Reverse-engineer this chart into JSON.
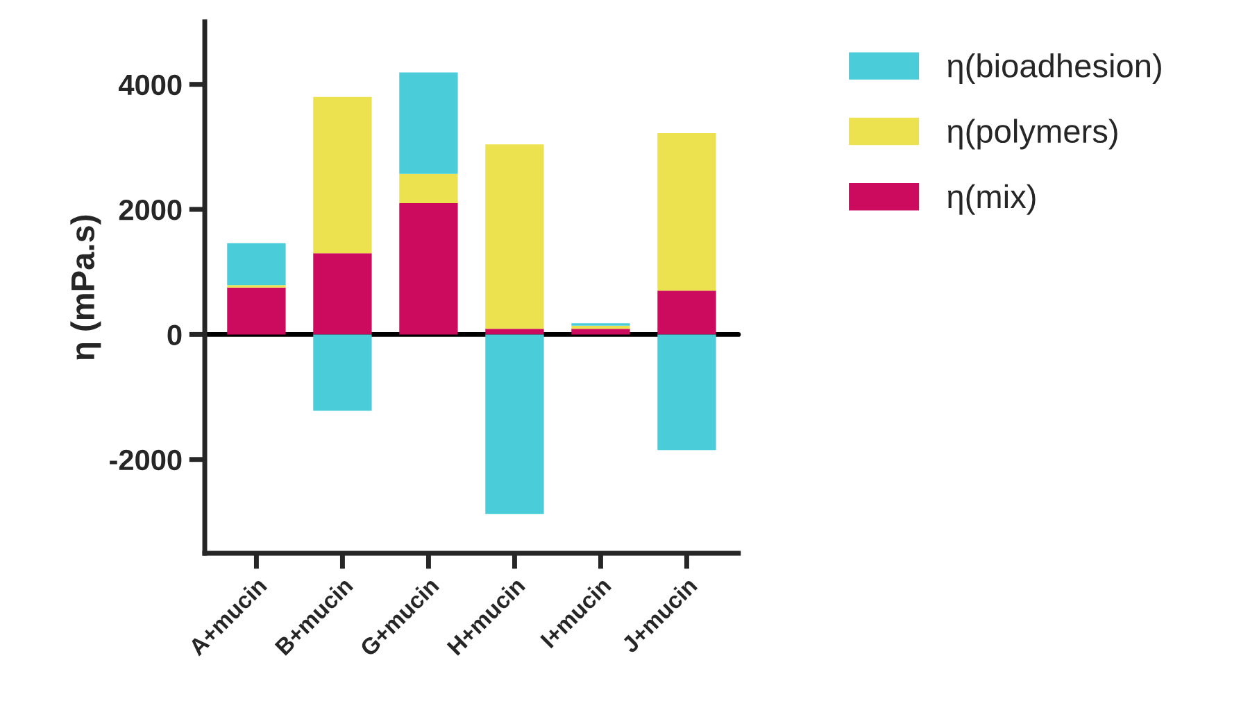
{
  "chart_data": {
    "type": "bar",
    "stacked": true,
    "ylabel": "η (mPa.s)",
    "categories": [
      "A+mucin",
      "B+mucin",
      "G+mucin",
      "H+mucin",
      "I+mucin",
      "J+mucin"
    ],
    "series": [
      {
        "name": "η(mix)",
        "color": "#cc0a5e",
        "values": [
          750,
          1300,
          2100,
          90,
          90,
          700
        ]
      },
      {
        "name": "η(polymers)",
        "color": "#ece250",
        "values": [
          40,
          2500,
          470,
          2950,
          50,
          2520
        ]
      },
      {
        "name": "η(bioadhesion)",
        "color": "#4acdd8",
        "values": [
          670,
          -1220,
          1620,
          -2870,
          40,
          -1850
        ]
      }
    ],
    "ylim": [
      -3500,
      5000
    ],
    "yticks": [
      -2000,
      0,
      2000,
      4000
    ],
    "ref_lines": [
      {
        "axis": "y",
        "value": 0,
        "color": "#000000"
      }
    ],
    "legend": "top right",
    "grid": false
  }
}
